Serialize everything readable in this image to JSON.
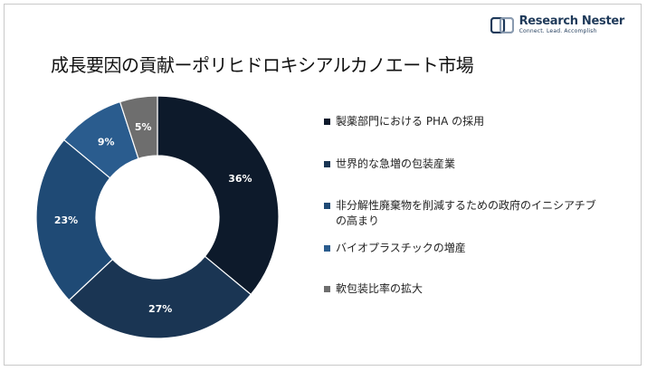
{
  "brand": {
    "name": "Research Nester",
    "tagline": "Connect. Lead. Accomplish"
  },
  "chart_data": {
    "type": "pie",
    "title": "成長要因の貢献ーポリヒドロキシアルカノエート市場",
    "donut": true,
    "legend_position": "right",
    "slices": [
      {
        "label": "製薬部門における PHA の採用",
        "value": 36,
        "display": "36%",
        "color": "#0d1a2b"
      },
      {
        "label": "世界的な急増の包装産業",
        "value": 27,
        "display": "27%",
        "color": "#1a3553"
      },
      {
        "label": "非分解性廃棄物を削減するための政府のイニシアチブの高まり",
        "value": 23,
        "display": "23%",
        "color": "#1f4a75"
      },
      {
        "label": "バイオプラスチックの増産",
        "value": 9,
        "display": "9%",
        "color": "#2a5c8e"
      },
      {
        "label": "軟包装比率の拡大",
        "value": 5,
        "display": "5%",
        "color": "#6e6e6e"
      }
    ]
  }
}
